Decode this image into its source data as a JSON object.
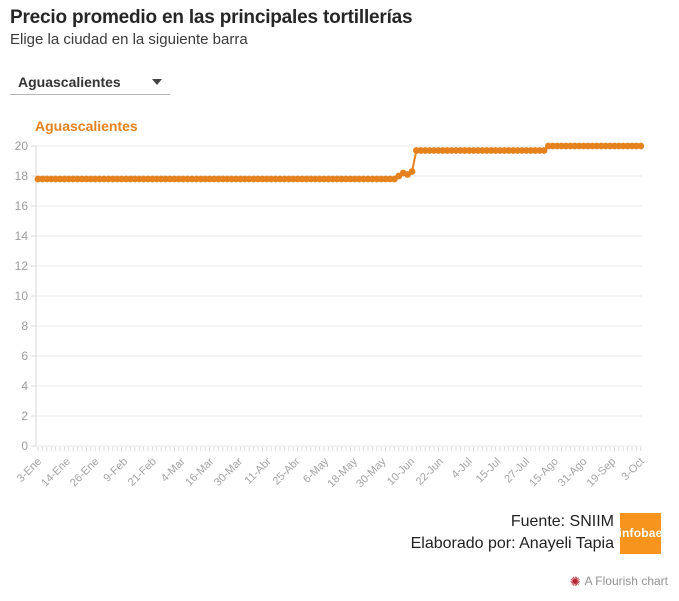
{
  "header": {
    "title": "Precio promedio en las principales tortillerías",
    "subtitle": "Elige la ciudad en la siguiente barra"
  },
  "controls": {
    "city_dropdown": {
      "selected": "Aguascalientes",
      "caret_icon": "chevron-down-icon"
    }
  },
  "chart_data": {
    "type": "line",
    "marker": "dot",
    "legend_position": "top-left",
    "grid": "horizontal",
    "series": [
      {
        "name": "Aguascalientes",
        "color": "#e5821e",
        "values_rle": [
          [
            82,
            17.8
          ],
          [
            1,
            18.0
          ],
          [
            1,
            18.2
          ],
          [
            1,
            18.1
          ],
          [
            1,
            18.3
          ],
          [
            30,
            19.7
          ],
          [
            22,
            20.0
          ]
        ]
      }
    ],
    "n_points": 138,
    "x_tick_labels": [
      "3-Ene",
      "14-Ene",
      "26-Ene",
      "9-Feb",
      "21-Feb",
      "4-Mar",
      "16-Mar",
      "30-Mar",
      "11-Abr",
      "25-Abr",
      "6-May",
      "18-May",
      "30-May",
      "10-Jun",
      "22-Jun",
      "4-Jul",
      "15-Jul",
      "27-Jul",
      "15-Ago",
      "31-Ago",
      "19-Sep",
      "3-Oct"
    ],
    "y_ticks": [
      0,
      2,
      4,
      6,
      8,
      10,
      12,
      14,
      16,
      18,
      20
    ],
    "ylim": [
      0,
      20
    ]
  },
  "footer": {
    "source": "Fuente: SNIIM",
    "credit": "Elaborado por: Anayeli Tapia",
    "logo_text": "infobae",
    "logo_color": "#f7941e"
  },
  "attribution": {
    "label": "A Flourish chart",
    "icon": "flourish-flower-icon",
    "icon_color": "#b5232d",
    "icon_glyph": "✺"
  },
  "colors": {
    "accent_orange": "#e5821e",
    "grid": "#e9e9e9",
    "axis": "#d9d9d9",
    "tick_text": "#9c9c9c"
  }
}
